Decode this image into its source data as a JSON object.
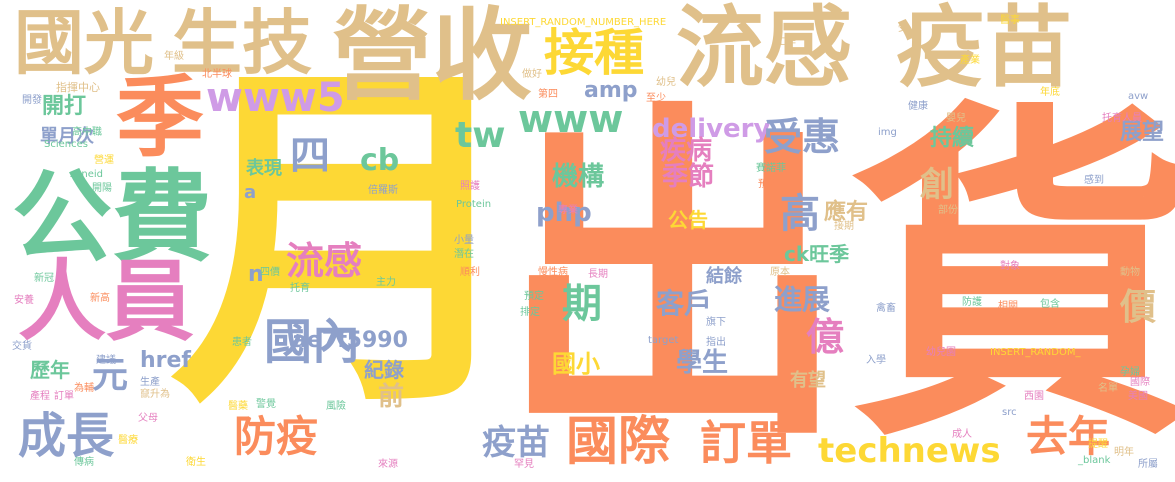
{
  "cloud": {
    "words": [
      {
        "text": "出貨",
        "color": "#fb8c5c"
      },
      {
        "text": "月",
        "color": "#fdd835"
      },
      {
        "text": "流感",
        "color": "#e0c08a"
      },
      {
        "text": "疫苗",
        "color": "#e0c08a"
      },
      {
        "text": "營收",
        "color": "#e0c08a"
      },
      {
        "text": "國光",
        "color": "#e0c08a"
      },
      {
        "text": "生技",
        "color": "#e0c08a"
      },
      {
        "text": "季",
        "color": "#fb8c5c"
      },
      {
        "text": "公費",
        "color": "#6cc79b"
      },
      {
        "text": "人員",
        "color": "#e57fbf"
      },
      {
        "text": "接種",
        "color": "#fdd835"
      },
      {
        "text": "www5",
        "color": "#cf9be6"
      },
      {
        "text": "www",
        "color": "#6cc79b"
      },
      {
        "text": "tw",
        "color": "#6cc79b"
      },
      {
        "text": "amp",
        "color": "#8ea0cb"
      },
      {
        "text": "delivery",
        "color": "#cf9be6"
      },
      {
        "text": "受惠",
        "color": "#8ea0cb"
      },
      {
        "text": "疾病",
        "color": "#e57fbf"
      },
      {
        "text": "季節",
        "color": "#e57fbf"
      },
      {
        "text": "機構",
        "color": "#6cc79b"
      },
      {
        "text": "持續",
        "color": "#6cc79b"
      },
      {
        "text": "展望",
        "color": "#8ea0cb"
      },
      {
        "text": "創",
        "color": "#e0c08a"
      },
      {
        "text": "高",
        "color": "#8ea0cb"
      },
      {
        "text": "應有",
        "color": "#e0c08a"
      },
      {
        "text": "php",
        "color": "#8ea0cb"
      },
      {
        "text": "公告",
        "color": "#fdd835"
      },
      {
        "text": "四",
        "color": "#8ea0cb"
      },
      {
        "text": "cb",
        "color": "#6cc79b"
      },
      {
        "text": "表現",
        "color": "#6cc79b"
      },
      {
        "text": "開打",
        "color": "#6cc79b"
      },
      {
        "text": "單月次",
        "color": "#8ea0cb"
      },
      {
        "text": "流感",
        "color": "#e57fbf"
      },
      {
        "text": "期",
        "color": "#6cc79b"
      },
      {
        "text": "ck旺季",
        "color": "#6cc79b"
      },
      {
        "text": "結餘",
        "color": "#8ea0cb"
      },
      {
        "text": "客戶",
        "color": "#8ea0cb"
      },
      {
        "text": "進展",
        "color": "#8ea0cb"
      },
      {
        "text": "億",
        "color": "#e57fbf"
      },
      {
        "text": "價",
        "color": "#e0c08a"
      },
      {
        "text": "國內",
        "color": "#8ea0cb"
      },
      {
        "text": "元",
        "color": "#8ea0cb"
      },
      {
        "text": "ae7f5990",
        "color": "#8ea0cb"
      },
      {
        "text": "紀錄",
        "color": "#8ea0cb"
      },
      {
        "text": "前",
        "color": "#e0c08a"
      },
      {
        "text": "國小",
        "color": "#fdd835"
      },
      {
        "text": "學生",
        "color": "#8ea0cb"
      },
      {
        "text": "有望",
        "color": "#e0c08a"
      },
      {
        "text": "href",
        "color": "#8ea0cb"
      },
      {
        "text": "歷年",
        "color": "#6cc79b"
      },
      {
        "text": "成長",
        "color": "#8ea0cb"
      },
      {
        "text": "防疫",
        "color": "#fb8c5c"
      },
      {
        "text": "疫苗",
        "color": "#8ea0cb"
      },
      {
        "text": "國際",
        "color": "#fb8c5c"
      },
      {
        "text": "訂單",
        "color": "#fb8c5c"
      },
      {
        "text": "technews",
        "color": "#fdd835"
      },
      {
        "text": "去年",
        "color": "#fb8c5c"
      },
      {
        "text": "n",
        "color": "#8ea0cb"
      },
      {
        "text": "a",
        "color": "#8ea0cb"
      },
      {
        "text": "INSERT_RANDOM_NUMBER_HERE",
        "color": "#fdd835"
      },
      {
        "text": "INSERT_RANDOM_",
        "color": "#fdd835"
      },
      {
        "text": "年級",
        "color": "#e0c08a"
      },
      {
        "text": "北半球",
        "color": "#fb8c5c"
      },
      {
        "text": "指揮中心",
        "color": "#e0c08a"
      },
      {
        "text": "開發",
        "color": "#8ea0cb"
      },
      {
        "text": "高中職",
        "color": "#6cc79b"
      },
      {
        "text": "Sciences",
        "color": "#6cc79b"
      },
      {
        "text": "zoneid",
        "color": "#6cc79b"
      },
      {
        "text": "開陽",
        "color": "#6cc79b"
      },
      {
        "text": "新冠",
        "color": "#6cc79b"
      },
      {
        "text": "新高",
        "color": "#fb8c5c"
      },
      {
        "text": "安養",
        "color": "#e57fbf"
      },
      {
        "text": "交貨",
        "color": "#8ea0cb"
      },
      {
        "text": "產程",
        "color": "#e57fbf"
      },
      {
        "text": "訂單",
        "color": "#e57fbf"
      },
      {
        "text": "傳病",
        "color": "#6cc79b"
      },
      {
        "text": "衛生",
        "color": "#fdd835"
      },
      {
        "text": "醫藥",
        "color": "#fdd835"
      },
      {
        "text": "幼兒園",
        "color": "#e57fbf"
      },
      {
        "text": "美國",
        "color": "#e57fbf"
      },
      {
        "text": "國際",
        "color": "#e57fbf"
      },
      {
        "text": "名單",
        "color": "#e0c08a"
      },
      {
        "text": "明年",
        "color": "#e0c08a"
      },
      {
        "text": "所屬",
        "color": "#8ea0cb"
      },
      {
        "text": "提醒",
        "color": "#fdd835"
      },
      {
        "text": "_blank",
        "color": "#6cc79b"
      },
      {
        "text": "罕見",
        "color": "#e57fbf"
      },
      {
        "text": "來源",
        "color": "#e57fbf"
      },
      {
        "text": "Protein",
        "color": "#6cc79b"
      },
      {
        "text": "target",
        "color": "#8ea0cb"
      },
      {
        "text": "src",
        "color": "#8ea0cb"
      },
      {
        "text": "avw",
        "color": "#8ea0cb"
      },
      {
        "text": "img",
        "color": "#8ea0cb"
      },
      {
        "text": "成人",
        "color": "#e57fbf"
      },
      {
        "text": "孕婦",
        "color": "#6cc79b"
      },
      {
        "text": "動物",
        "color": "#e0c08a"
      },
      {
        "text": "對象",
        "color": "#e57fbf"
      },
      {
        "text": "托育人員",
        "color": "#e57fbf"
      },
      {
        "text": "年底",
        "color": "#fdd835"
      },
      {
        "text": "產業",
        "color": "#fdd835"
      },
      {
        "text": "醫事",
        "color": "#fdd835"
      },
      {
        "text": "健康",
        "color": "#8ea0cb"
      },
      {
        "text": "嬰兒",
        "color": "#e0c08a"
      },
      {
        "text": "幼兒",
        "color": "#e0c08a"
      },
      {
        "text": "工作",
        "color": "#e0c08a"
      },
      {
        "text": "受",
        "color": "#e0c08a"
      },
      {
        "text": "做好",
        "color": "#e0c08a"
      },
      {
        "text": "第四",
        "color": "#fb8c5c"
      },
      {
        "text": "至少",
        "color": "#fb8c5c"
      },
      {
        "text": "預先",
        "color": "#fb8c5c"
      },
      {
        "text": "賽諾菲",
        "color": "#6cc79b"
      },
      {
        "text": "部份",
        "color": "#e0c08a"
      },
      {
        "text": "接期",
        "color": "#e0c08a"
      },
      {
        "text": "原本",
        "color": "#e0c08a"
      },
      {
        "text": "防護",
        "color": "#6cc79b"
      },
      {
        "text": "相關",
        "color": "#fb8c5c"
      },
      {
        "text": "包含",
        "color": "#6cc79b"
      },
      {
        "text": "慢性病",
        "color": "#fb8c5c"
      },
      {
        "text": "長期",
        "color": "#e57fbf"
      },
      {
        "text": "照護",
        "color": "#e57fbf"
      },
      {
        "text": "預定",
        "color": "#6cc79b"
      },
      {
        "text": "排定",
        "color": "#6cc79b"
      },
      {
        "text": "旗下",
        "color": "#8ea0cb"
      },
      {
        "text": "指出",
        "color": "#8ea0cb"
      },
      {
        "text": "禽畜",
        "color": "#8ea0cb"
      },
      {
        "text": "入學",
        "color": "#8ea0cb"
      },
      {
        "text": "四價",
        "color": "#6cc79b"
      },
      {
        "text": "托育",
        "color": "#6cc79b"
      },
      {
        "text": "主力",
        "color": "#6cc79b"
      },
      {
        "text": "倍羅斯",
        "color": "#8ea0cb"
      },
      {
        "text": "父母",
        "color": "#e57fbf"
      },
      {
        "text": "醫療",
        "color": "#fdd835"
      },
      {
        "text": "患者",
        "color": "#6cc79b"
      },
      {
        "text": "建議",
        "color": "#8ea0cb"
      },
      {
        "text": "生產",
        "color": "#8ea0cb"
      },
      {
        "text": "竄升為",
        "color": "#e0c08a"
      },
      {
        "text": "為輔",
        "color": "#fb8c5c"
      },
      {
        "text": "營運",
        "color": "#fdd835"
      },
      {
        "text": "風險",
        "color": "#6cc79b"
      },
      {
        "text": "潛在",
        "color": "#6cc79b"
      },
      {
        "text": "小量",
        "color": "#8ea0cb"
      },
      {
        "text": "順利",
        "color": "#fb8c5c"
      },
      {
        "text": "專業",
        "color": "#e57fbf"
      },
      {
        "text": "西園",
        "color": "#e57fbf"
      },
      {
        "text": "警覺",
        "color": "#6cc79b"
      },
      {
        "text": "感到",
        "color": "#8ea0cb"
      }
    ]
  }
}
